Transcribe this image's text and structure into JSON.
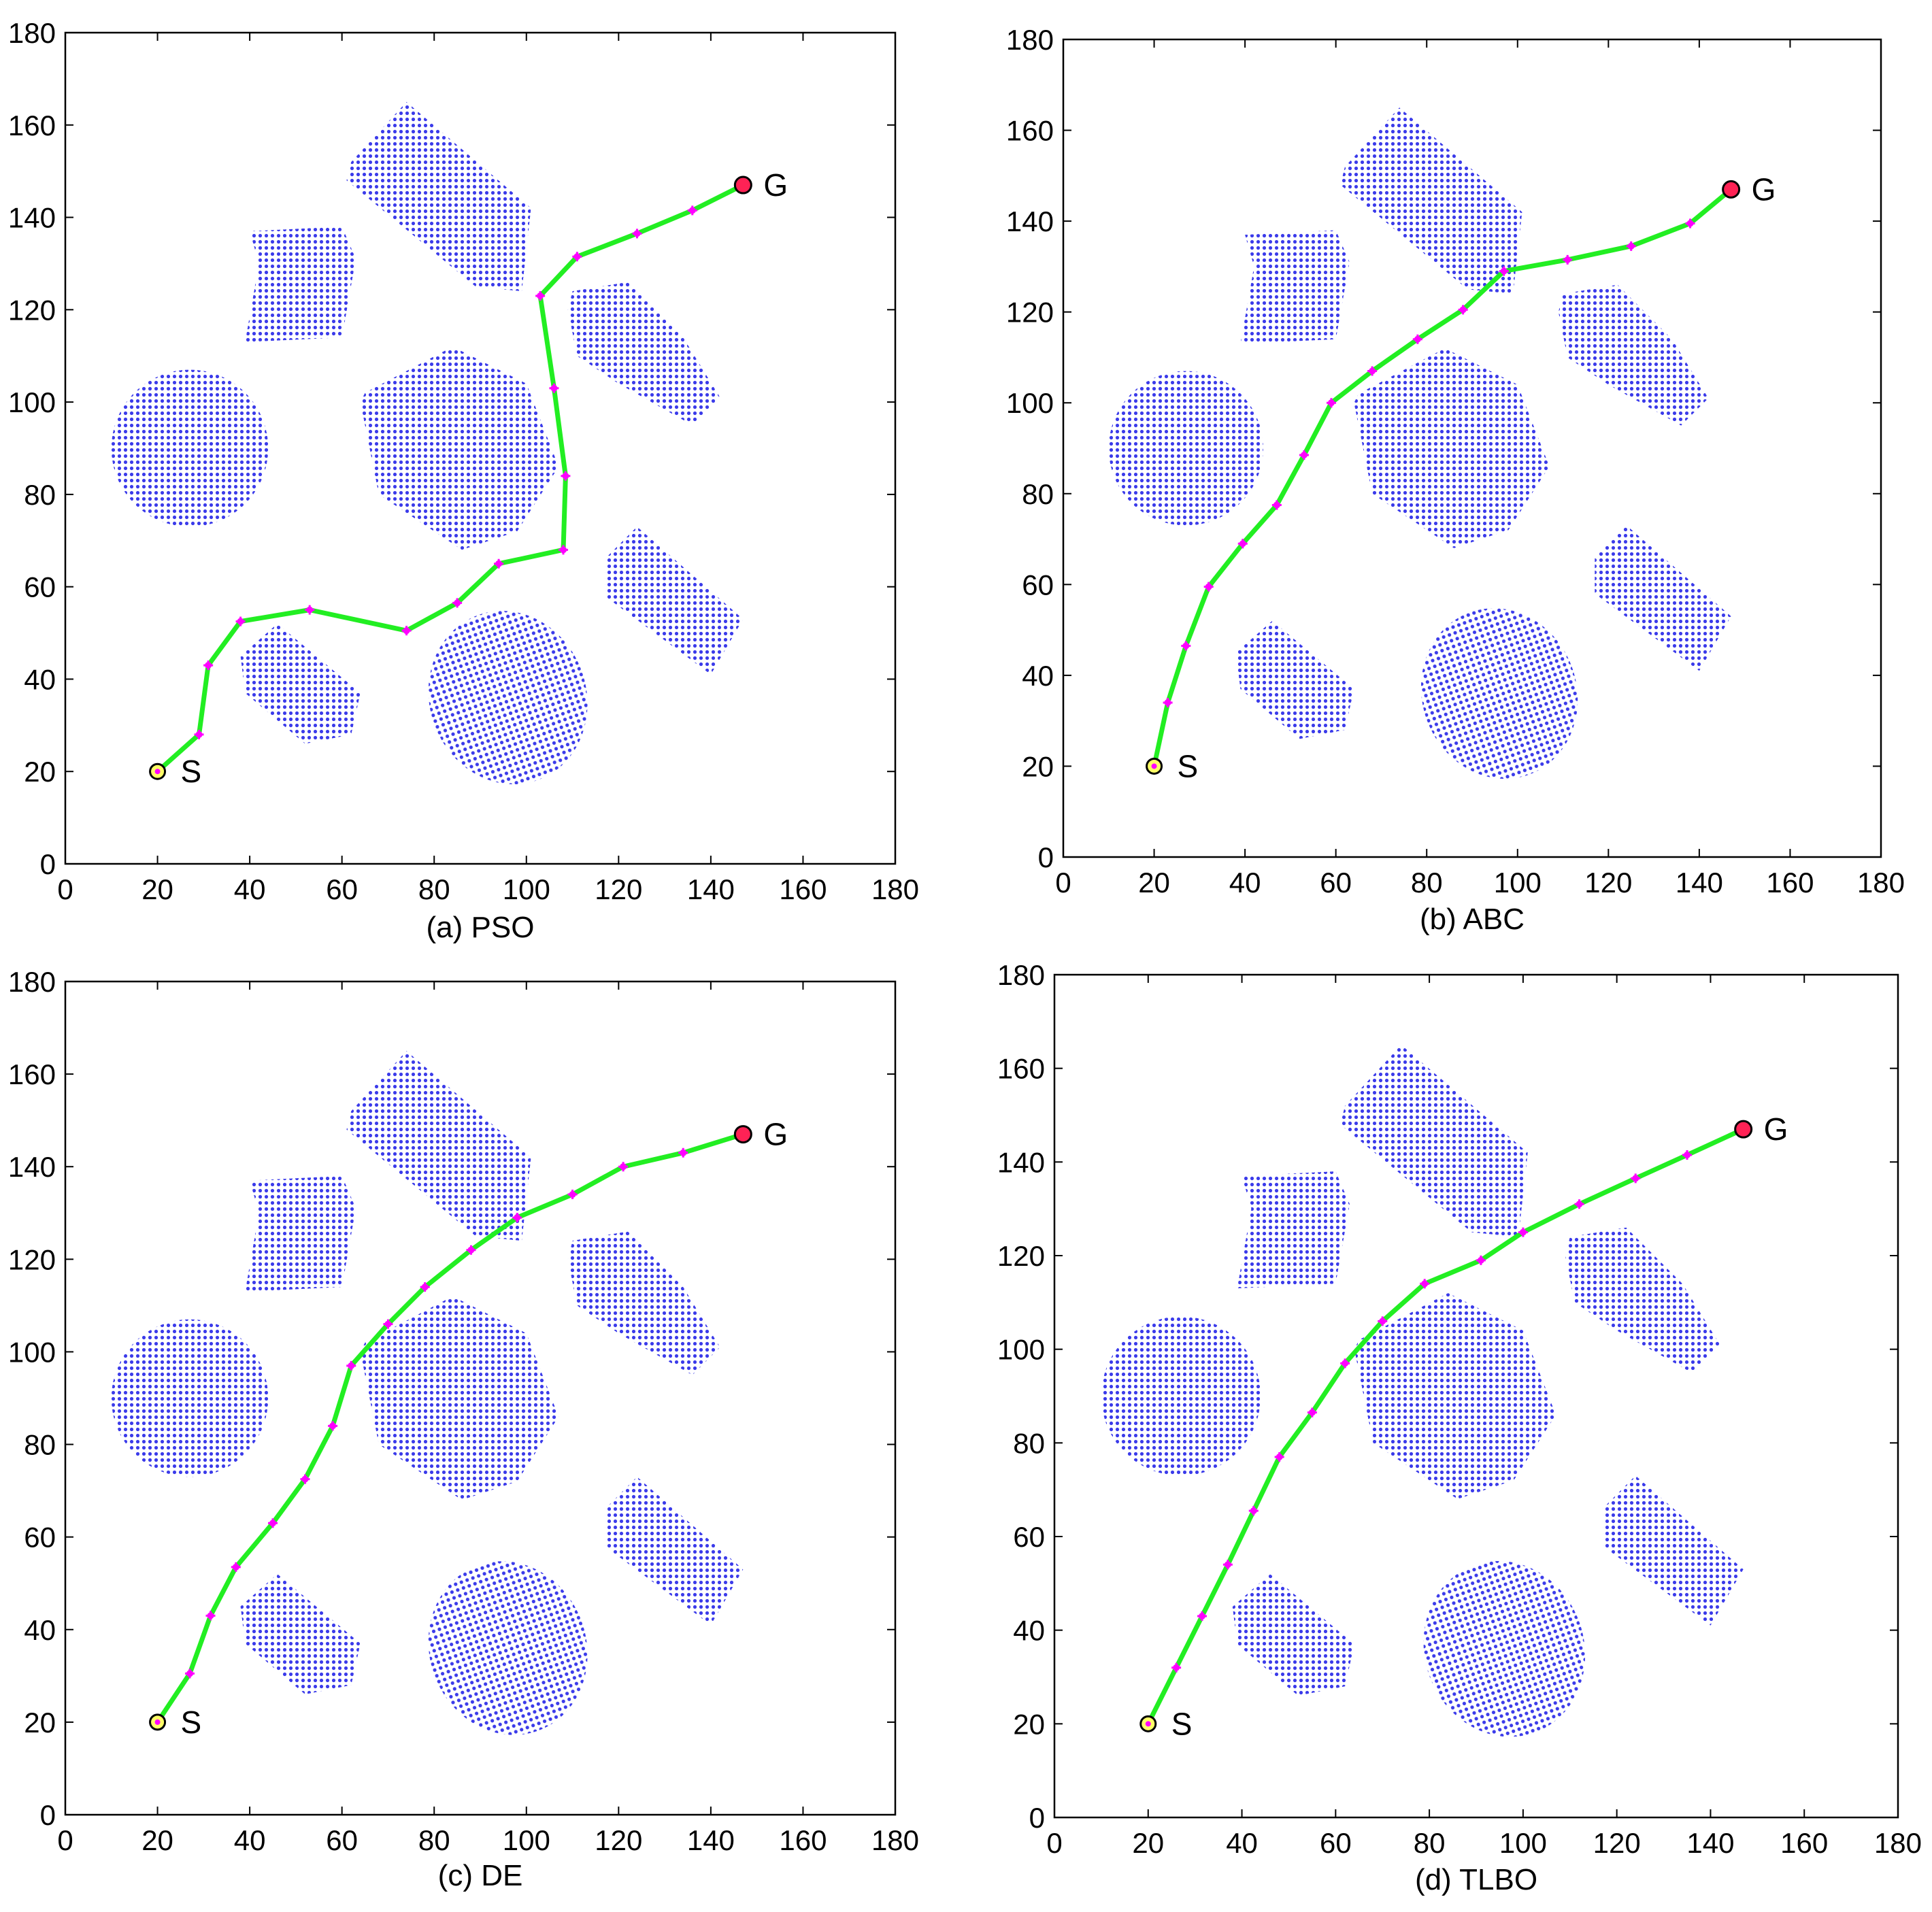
{
  "colors": {
    "obstacle": "#3b3bea",
    "path": "#22ee22",
    "waypoint": "#ff00ff",
    "start_fill": "#ffff66",
    "goal_fill": "#ff2255",
    "axis": "#000000"
  },
  "chart_data": [
    {
      "type": "scatter",
      "caption": "(a) PSO",
      "xlim": [
        0,
        180
      ],
      "ylim": [
        0,
        180
      ],
      "xticks": [
        "0",
        "20",
        "40",
        "60",
        "80",
        "100",
        "120",
        "140",
        "160",
        "180"
      ],
      "yticks": [
        "0",
        "20",
        "40",
        "60",
        "80",
        "100",
        "120",
        "140",
        "160",
        "180"
      ],
      "start": {
        "label": "S",
        "x": 20,
        "y": 20
      },
      "goal": {
        "label": "G",
        "x": 147,
        "y": 147
      },
      "path": [
        [
          20,
          20
        ],
        [
          29,
          28
        ],
        [
          31,
          43
        ],
        [
          38,
          52.5
        ],
        [
          53,
          55
        ],
        [
          74,
          50.5
        ],
        [
          85,
          56.5
        ],
        [
          94,
          65
        ],
        [
          108,
          68
        ],
        [
          108.5,
          84
        ],
        [
          106,
          103
        ],
        [
          103,
          123
        ],
        [
          111,
          131.5
        ],
        [
          124,
          136.5
        ],
        [
          136,
          141.5
        ],
        [
          147,
          147
        ]
      ],
      "obstacles": [
        {
          "type": "ellipse",
          "cx": 27,
          "cy": 90,
          "rx": 17,
          "ry": 17
        },
        {
          "type": "poly",
          "points": [
            [
              40,
              137
            ],
            [
              60,
              138
            ],
            [
              63,
              131
            ],
            [
              60,
              114
            ],
            [
              39,
              113
            ],
            [
              42,
              130
            ]
          ]
        },
        {
          "type": "poly",
          "points": [
            [
              62,
              152
            ],
            [
              74,
              165
            ],
            [
              101,
              142
            ],
            [
              99,
              124
            ],
            [
              89,
              125
            ],
            [
              61,
              148
            ]
          ]
        },
        {
          "type": "poly",
          "points": [
            [
              65,
              102
            ],
            [
              84,
              112
            ],
            [
              100,
              104
            ],
            [
              107,
              86
            ],
            [
              98,
              72
            ],
            [
              86,
              68
            ],
            [
              68,
              80
            ],
            [
              64,
              100
            ]
          ]
        },
        {
          "type": "poly",
          "points": [
            [
              110,
              124
            ],
            [
              122,
              126
            ],
            [
              134,
              114
            ],
            [
              142,
              101
            ],
            [
              136,
              95
            ],
            [
              120,
              104
            ],
            [
              111,
              110
            ],
            [
              109,
              120
            ]
          ]
        },
        {
          "type": "poly",
          "points": [
            [
              117,
              66
            ],
            [
              124,
              73
            ],
            [
              147,
              53
            ],
            [
              140,
              41
            ],
            [
              117,
              58
            ]
          ]
        },
        {
          "type": "poly",
          "points": [
            [
              38,
              45
            ],
            [
              46,
              52
            ],
            [
              64,
              37
            ],
            [
              62,
              28
            ],
            [
              52,
              26
            ],
            [
              39,
              37
            ]
          ]
        },
        {
          "type": "ellipse",
          "cx": 96,
          "cy": 36,
          "rx": 17,
          "ry": 19,
          "rot": -20
        }
      ]
    },
    {
      "type": "scatter",
      "caption": "(b) ABC",
      "xlim": [
        0,
        180
      ],
      "ylim": [
        0,
        180
      ],
      "xticks": [
        "0",
        "20",
        "40",
        "60",
        "80",
        "100",
        "120",
        "140",
        "160",
        "180"
      ],
      "yticks": [
        "0",
        "20",
        "40",
        "60",
        "80",
        "100",
        "120",
        "140",
        "160",
        "180"
      ],
      "start": {
        "label": "S",
        "x": 20,
        "y": 20
      },
      "goal": {
        "label": "G",
        "x": 147,
        "y": 147
      },
      "path": [
        [
          20,
          20
        ],
        [
          23,
          34
        ],
        [
          27,
          46.5
        ],
        [
          32,
          59.5
        ],
        [
          39.5,
          69
        ],
        [
          47,
          77.5
        ],
        [
          53,
          88.5
        ],
        [
          59,
          100
        ],
        [
          68,
          107
        ],
        [
          78,
          114
        ],
        [
          88,
          120.5
        ],
        [
          97,
          129
        ],
        [
          111,
          131.5
        ],
        [
          125,
          134.5
        ],
        [
          138,
          139.5
        ],
        [
          147,
          147
        ]
      ],
      "obstacles": [
        {
          "type": "ellipse",
          "cx": 27,
          "cy": 90,
          "rx": 17,
          "ry": 17
        },
        {
          "type": "poly",
          "points": [
            [
              40,
              137
            ],
            [
              60,
              138
            ],
            [
              63,
              131
            ],
            [
              60,
              114
            ],
            [
              39,
              113
            ],
            [
              42,
              130
            ]
          ]
        },
        {
          "type": "poly",
          "points": [
            [
              62,
              152
            ],
            [
              74,
              165
            ],
            [
              101,
              142
            ],
            [
              99,
              124
            ],
            [
              89,
              125
            ],
            [
              61,
              148
            ]
          ]
        },
        {
          "type": "poly",
          "points": [
            [
              65,
              102
            ],
            [
              84,
              112
            ],
            [
              100,
              104
            ],
            [
              107,
              86
            ],
            [
              98,
              72
            ],
            [
              86,
              68
            ],
            [
              68,
              80
            ],
            [
              64,
              100
            ]
          ]
        },
        {
          "type": "poly",
          "points": [
            [
              110,
              124
            ],
            [
              122,
              126
            ],
            [
              134,
              114
            ],
            [
              142,
              101
            ],
            [
              136,
              95
            ],
            [
              120,
              104
            ],
            [
              111,
              110
            ],
            [
              109,
              120
            ]
          ]
        },
        {
          "type": "poly",
          "points": [
            [
              117,
              66
            ],
            [
              124,
              73
            ],
            [
              147,
              53
            ],
            [
              140,
              41
            ],
            [
              117,
              58
            ]
          ]
        },
        {
          "type": "poly",
          "points": [
            [
              38,
              45
            ],
            [
              46,
              52
            ],
            [
              64,
              37
            ],
            [
              62,
              28
            ],
            [
              52,
              26
            ],
            [
              39,
              37
            ]
          ]
        },
        {
          "type": "ellipse",
          "cx": 96,
          "cy": 36,
          "rx": 17,
          "ry": 19,
          "rot": -20
        }
      ]
    },
    {
      "type": "scatter",
      "caption": "(c) DE",
      "xlim": [
        0,
        180
      ],
      "ylim": [
        0,
        180
      ],
      "xticks": [
        "0",
        "20",
        "40",
        "60",
        "80",
        "100",
        "120",
        "140",
        "160",
        "180"
      ],
      "yticks": [
        "0",
        "20",
        "40",
        "60",
        "80",
        "100",
        "120",
        "140",
        "160",
        "180"
      ],
      "start": {
        "label": "S",
        "x": 20,
        "y": 20
      },
      "goal": {
        "label": "G",
        "x": 147,
        "y": 147
      },
      "path": [
        [
          20,
          20
        ],
        [
          27,
          30.5
        ],
        [
          31.5,
          43
        ],
        [
          37,
          53.5
        ],
        [
          45,
          63
        ],
        [
          52,
          72.5
        ],
        [
          58,
          84
        ],
        [
          62,
          97
        ],
        [
          70,
          106
        ],
        [
          78,
          114
        ],
        [
          88,
          122
        ],
        [
          98,
          129
        ],
        [
          110,
          134
        ],
        [
          121,
          140
        ],
        [
          134,
          143
        ],
        [
          147,
          147
        ]
      ],
      "obstacles": [
        {
          "type": "ellipse",
          "cx": 27,
          "cy": 90,
          "rx": 17,
          "ry": 17
        },
        {
          "type": "poly",
          "points": [
            [
              40,
              137
            ],
            [
              60,
              138
            ],
            [
              63,
              131
            ],
            [
              60,
              114
            ],
            [
              39,
              113
            ],
            [
              42,
              130
            ]
          ]
        },
        {
          "type": "poly",
          "points": [
            [
              62,
              152
            ],
            [
              74,
              165
            ],
            [
              101,
              142
            ],
            [
              99,
              124
            ],
            [
              89,
              125
            ],
            [
              61,
              148
            ]
          ]
        },
        {
          "type": "poly",
          "points": [
            [
              65,
              102
            ],
            [
              84,
              112
            ],
            [
              100,
              104
            ],
            [
              107,
              86
            ],
            [
              98,
              72
            ],
            [
              86,
              68
            ],
            [
              68,
              80
            ],
            [
              64,
              100
            ]
          ]
        },
        {
          "type": "poly",
          "points": [
            [
              110,
              124
            ],
            [
              122,
              126
            ],
            [
              134,
              114
            ],
            [
              142,
              101
            ],
            [
              136,
              95
            ],
            [
              120,
              104
            ],
            [
              111,
              110
            ],
            [
              109,
              120
            ]
          ]
        },
        {
          "type": "poly",
          "points": [
            [
              117,
              66
            ],
            [
              124,
              73
            ],
            [
              147,
              53
            ],
            [
              140,
              41
            ],
            [
              117,
              58
            ]
          ]
        },
        {
          "type": "poly",
          "points": [
            [
              38,
              45
            ],
            [
              46,
              52
            ],
            [
              64,
              37
            ],
            [
              62,
              28
            ],
            [
              52,
              26
            ],
            [
              39,
              37
            ]
          ]
        },
        {
          "type": "ellipse",
          "cx": 96,
          "cy": 36,
          "rx": 17,
          "ry": 19,
          "rot": -20
        }
      ]
    },
    {
      "type": "scatter",
      "caption": "(d) TLBO",
      "xlim": [
        0,
        180
      ],
      "ylim": [
        0,
        180
      ],
      "xticks": [
        "0",
        "20",
        "40",
        "60",
        "80",
        "100",
        "120",
        "140",
        "160",
        "180"
      ],
      "yticks": [
        "0",
        "20",
        "40",
        "60",
        "80",
        "100",
        "120",
        "140",
        "160",
        "180"
      ],
      "start": {
        "label": "S",
        "x": 20,
        "y": 20
      },
      "goal": {
        "label": "G",
        "x": 147,
        "y": 147
      },
      "path": [
        [
          20,
          20
        ],
        [
          26,
          32
        ],
        [
          31.5,
          43
        ],
        [
          37,
          54
        ],
        [
          42.5,
          65.5
        ],
        [
          48,
          77
        ],
        [
          55,
          86.5
        ],
        [
          62,
          97
        ],
        [
          70,
          106
        ],
        [
          79,
          114
        ],
        [
          91,
          119
        ],
        [
          100,
          125
        ],
        [
          112,
          131
        ],
        [
          124,
          136.5
        ],
        [
          135,
          141.5
        ],
        [
          147,
          147
        ]
      ],
      "obstacles": [
        {
          "type": "ellipse",
          "cx": 27,
          "cy": 90,
          "rx": 17,
          "ry": 17
        },
        {
          "type": "poly",
          "points": [
            [
              40,
              137
            ],
            [
              60,
              138
            ],
            [
              63,
              131
            ],
            [
              60,
              114
            ],
            [
              39,
              113
            ],
            [
              42,
              130
            ]
          ]
        },
        {
          "type": "poly",
          "points": [
            [
              62,
              152
            ],
            [
              74,
              165
            ],
            [
              101,
              142
            ],
            [
              99,
              124
            ],
            [
              89,
              125
            ],
            [
              61,
              148
            ]
          ]
        },
        {
          "type": "poly",
          "points": [
            [
              65,
              102
            ],
            [
              84,
              112
            ],
            [
              100,
              104
            ],
            [
              107,
              86
            ],
            [
              98,
              72
            ],
            [
              86,
              68
            ],
            [
              68,
              80
            ],
            [
              64,
              100
            ]
          ]
        },
        {
          "type": "poly",
          "points": [
            [
              110,
              124
            ],
            [
              122,
              126
            ],
            [
              134,
              114
            ],
            [
              142,
              101
            ],
            [
              136,
              95
            ],
            [
              120,
              104
            ],
            [
              111,
              110
            ],
            [
              109,
              120
            ]
          ]
        },
        {
          "type": "poly",
          "points": [
            [
              117,
              66
            ],
            [
              124,
              73
            ],
            [
              147,
              53
            ],
            [
              140,
              41
            ],
            [
              117,
              58
            ]
          ]
        },
        {
          "type": "poly",
          "points": [
            [
              38,
              45
            ],
            [
              46,
              52
            ],
            [
              64,
              37
            ],
            [
              62,
              28
            ],
            [
              52,
              26
            ],
            [
              39,
              37
            ]
          ]
        },
        {
          "type": "ellipse",
          "cx": 96,
          "cy": 36,
          "rx": 17,
          "ry": 19,
          "rot": -20
        }
      ]
    }
  ]
}
